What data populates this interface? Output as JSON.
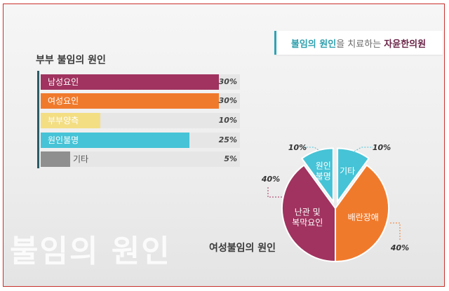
{
  "banner": {
    "part1": "불임의 원인",
    "part2": "을 치료하는 ",
    "part3": "자윤한의원"
  },
  "watermark": "불임의 원인",
  "colors": {
    "male": "#a0335f",
    "female": "#f07a2c",
    "couple": "#f3de84",
    "unknown": "#46c3d6",
    "other": "#8f8f8f",
    "pie_infertility": "#a0335f",
    "pie_endometriosis": "#f07a2c",
    "pie_unknown": "#46c3d6",
    "pie_other": "#46c3d6"
  },
  "chart_data": [
    {
      "type": "bar",
      "title": "부부 불임의 원인",
      "categories": [
        "남성요인",
        "여성요인",
        "부부양측",
        "원인불명",
        "기타"
      ],
      "values": [
        30,
        30,
        10,
        25,
        5
      ],
      "value_labels": [
        "30%",
        "30%",
        "10%",
        "25%",
        "5%"
      ],
      "xlim": [
        0,
        30
      ],
      "orientation": "horizontal"
    },
    {
      "type": "pie",
      "title": "여성불임의 원인",
      "slices": [
        {
          "label": "기타",
          "value": 10,
          "value_label": "10%"
        },
        {
          "label": "배란장애",
          "value": 40,
          "value_label": "40%"
        },
        {
          "label": "난관 및\n복막요인",
          "value": 40,
          "value_label": "40%"
        },
        {
          "label": "원인\n불명",
          "value": 10,
          "value_label": "10%"
        }
      ]
    }
  ]
}
